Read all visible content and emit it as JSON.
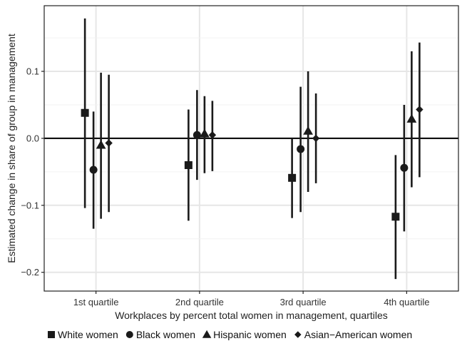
{
  "chart_data": {
    "type": "scatter",
    "subtype": "point-range",
    "xlabel": "Workplaces by percent total women in management, quartiles",
    "ylabel": "Estimated change in share of group in management",
    "categories": [
      "1st quartile",
      "2nd quartile",
      "3rd quartile",
      "4th quartile"
    ],
    "yticks": [
      -0.2,
      -0.1,
      0.0,
      0.1
    ],
    "ytick_labels": [
      "−0.2",
      "−0.1",
      "0.0",
      "0.1"
    ],
    "ylim": [
      -0.228,
      0.198
    ],
    "grid": true,
    "reference_line": 0,
    "legend_position": "bottom",
    "series": [
      {
        "name": "White women",
        "marker": "square",
        "estimates": [
          0.038,
          -0.04,
          -0.059,
          -0.117
        ],
        "lower": [
          -0.104,
          -0.123,
          -0.119,
          -0.21
        ],
        "upper": [
          0.179,
          0.043,
          -0.001,
          -0.025
        ]
      },
      {
        "name": "Black women",
        "marker": "circle",
        "estimates": [
          -0.047,
          0.005,
          -0.016,
          -0.044
        ],
        "lower": [
          -0.135,
          -0.062,
          -0.11,
          -0.139
        ],
        "upper": [
          0.04,
          0.072,
          0.077,
          0.05
        ]
      },
      {
        "name": "Hispanic women",
        "marker": "triangle",
        "estimates": [
          -0.01,
          0.007,
          0.011,
          0.029
        ],
        "lower": [
          -0.12,
          -0.052,
          -0.08,
          -0.073
        ],
        "upper": [
          0.098,
          0.063,
          0.1,
          0.13
        ]
      },
      {
        "name": "Asian−American women",
        "marker": "diamond",
        "estimates": [
          -0.007,
          0.005,
          0.0,
          0.043
        ],
        "lower": [
          -0.11,
          -0.049,
          -0.067,
          -0.058
        ],
        "upper": [
          0.095,
          0.056,
          0.067,
          0.143
        ]
      }
    ],
    "colors": {
      "points": "#1a1a1a",
      "grid": "#e6e6e6",
      "frame": "#222222",
      "zero_line": "#000000"
    }
  }
}
